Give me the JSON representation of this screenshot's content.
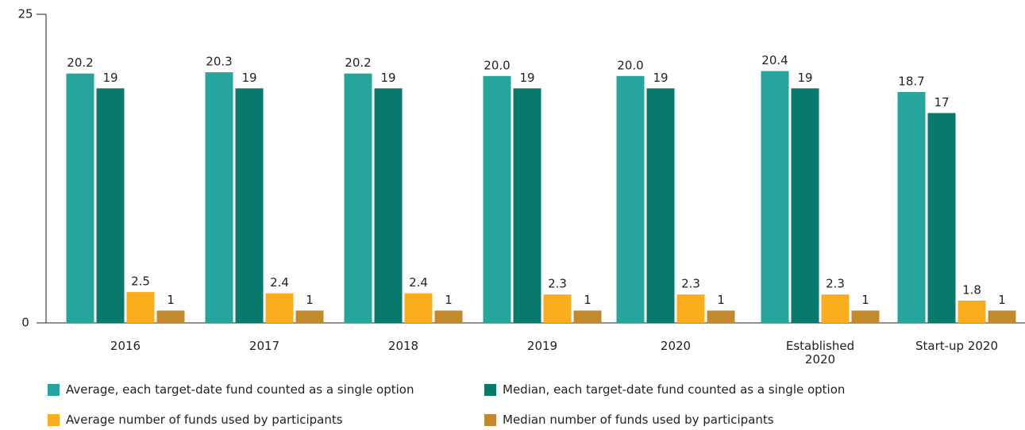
{
  "chart_data": {
    "type": "bar",
    "categories": [
      "2016",
      "2017",
      "2018",
      "2019",
      "2020",
      "Established 2020",
      "Start-up 2020"
    ],
    "series": [
      {
        "name": "Average, each target-date fund counted as a single option",
        "color": "#26a59d",
        "values": [
          20.2,
          20.3,
          20.2,
          20.0,
          20.0,
          20.4,
          18.7
        ],
        "value_labels": [
          "20.2",
          "20.3",
          "20.2",
          "20.0",
          "20.0",
          "20.4",
          "18.7"
        ]
      },
      {
        "name": "Median, each target-date fund counted as a single option",
        "color": "#08796d",
        "values": [
          19,
          19,
          19,
          19,
          19,
          19,
          17
        ]
      },
      {
        "name": "Average number of funds used by participants",
        "color": "#f9ac1c",
        "values": [
          2.5,
          2.4,
          2.4,
          2.3,
          2.3,
          2.3,
          1.8
        ]
      },
      {
        "name": "Median number of funds used by participants",
        "color": "#c4892d",
        "values": [
          1,
          1,
          1,
          1,
          1,
          1,
          1
        ]
      }
    ],
    "ylim": [
      0,
      25
    ],
    "yticks": [
      0,
      25
    ],
    "grid": false
  }
}
